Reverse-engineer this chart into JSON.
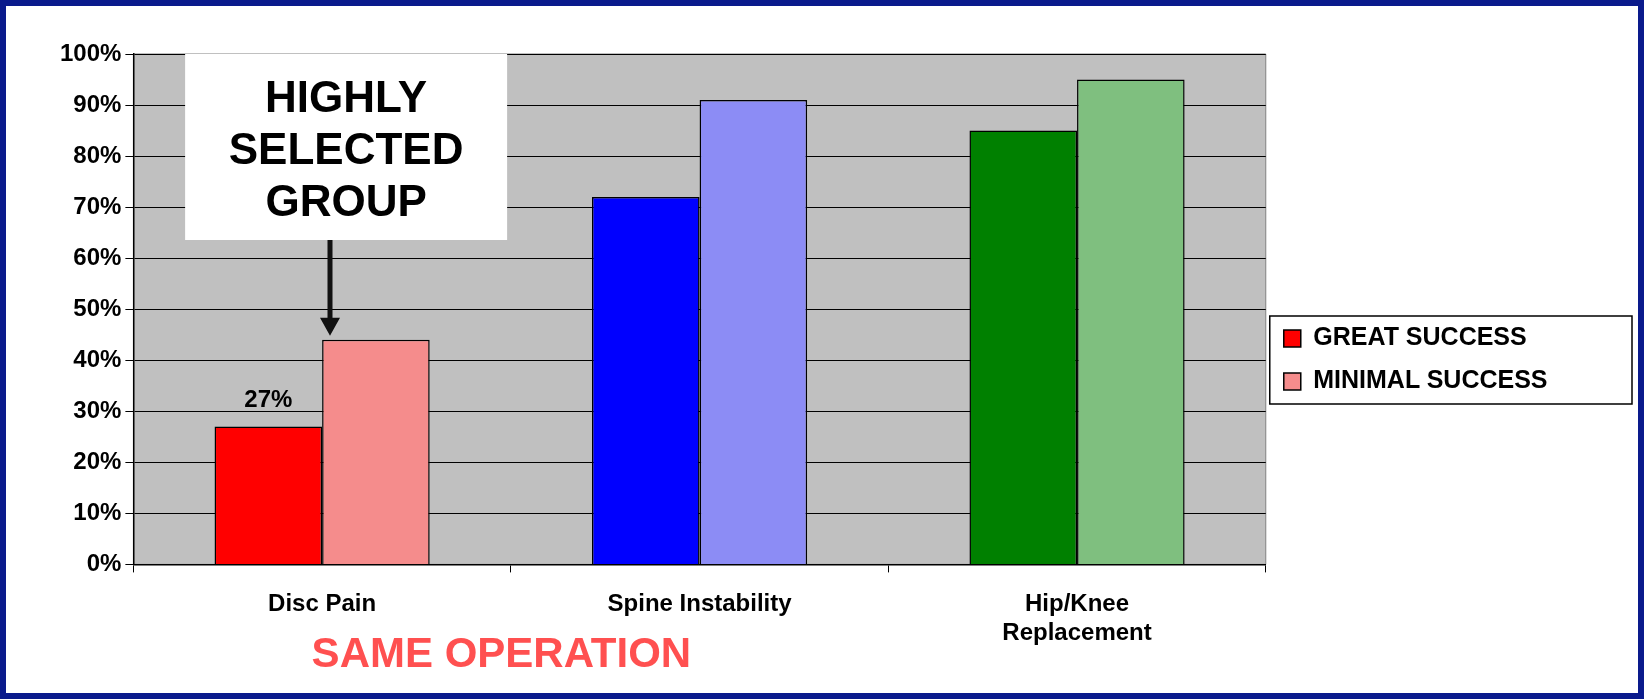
{
  "chart_data": {
    "type": "bar",
    "categories": [
      "Disc Pain",
      "Spine Instability",
      "Hip/Knee Replacement"
    ],
    "series": [
      {
        "name": "GREAT SUCCESS",
        "color": "#ff0000",
        "colors": [
          "#ff0000",
          "#0000ff",
          "#008000"
        ],
        "values": [
          27,
          72,
          85
        ],
        "value_labels": [
          "27%",
          null,
          null
        ]
      },
      {
        "name": "MINIMAL SUCCESS",
        "colors": [
          "#f58c8c",
          "#8c8cf5",
          "#7fbf7f"
        ],
        "values": [
          44,
          91,
          95
        ]
      }
    ],
    "ylim": [
      0,
      100
    ],
    "yticks": [
      {
        "value": 0,
        "label": "0%"
      },
      {
        "value": 10,
        "label": "10%"
      },
      {
        "value": 20,
        "label": "20%"
      },
      {
        "value": 30,
        "label": "30%"
      },
      {
        "value": 40,
        "label": "40%"
      },
      {
        "value": 50,
        "label": "50%"
      },
      {
        "value": 60,
        "label": "60%"
      },
      {
        "value": 70,
        "label": "70%"
      },
      {
        "value": 80,
        "label": "80%"
      },
      {
        "value": 90,
        "label": "90%"
      },
      {
        "value": 100,
        "label": "100%"
      }
    ],
    "grid": "y",
    "legend": "right",
    "annotations": [
      {
        "text": "HIGHLY SELECTED GROUP",
        "x": "Disc Pain",
        "y": 44
      },
      "SAME OPERATION"
    ]
  }
}
